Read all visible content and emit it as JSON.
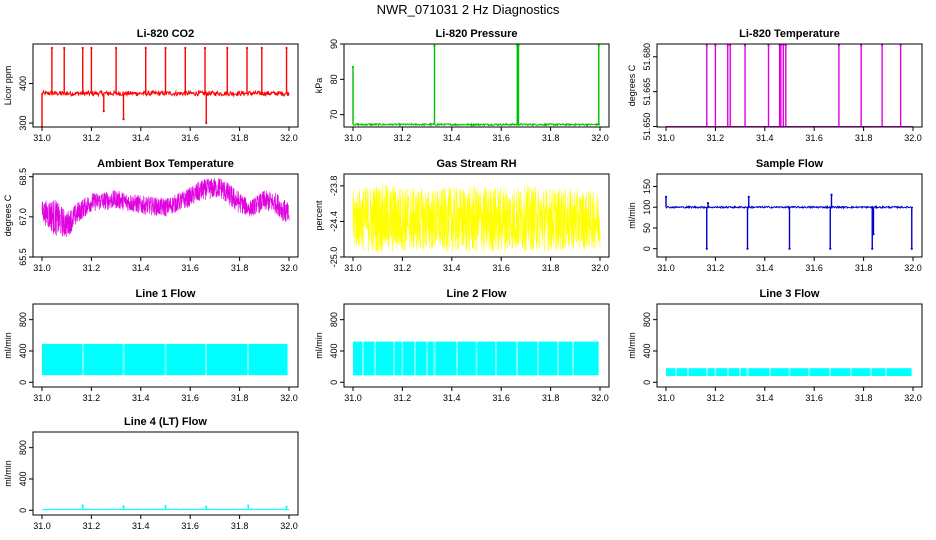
{
  "title": "NWR_071031 2 Hz Diagnostics",
  "chart_data": [
    {
      "type": "line",
      "title": "Li-820 CO2",
      "ylabel": "Licor ppm",
      "color": "#ff0000",
      "xlim": [
        31.0,
        32.0
      ],
      "ylim": [
        290,
        500
      ],
      "x_ticks": [
        "31.0",
        "31.2",
        "31.4",
        "31.6",
        "31.8",
        "32.0"
      ],
      "y_ticks": [
        {
          "value": 300,
          "label": "300"
        },
        {
          "value": 400,
          "label": "400"
        }
      ],
      "baseline": 375,
      "noise": 6,
      "fill": false,
      "spikes": [
        {
          "x": 31.0,
          "y": 290
        },
        {
          "x": 31.04,
          "y": 490
        },
        {
          "x": 31.09,
          "y": 490
        },
        {
          "x": 31.165,
          "y": 490
        },
        {
          "x": 31.2,
          "y": 490
        },
        {
          "x": 31.25,
          "y": 330
        },
        {
          "x": 31.3,
          "y": 490
        },
        {
          "x": 31.33,
          "y": 310
        },
        {
          "x": 31.42,
          "y": 490
        },
        {
          "x": 31.5,
          "y": 490
        },
        {
          "x": 31.58,
          "y": 490
        },
        {
          "x": 31.66,
          "y": 490
        },
        {
          "x": 31.665,
          "y": 300
        },
        {
          "x": 31.75,
          "y": 490
        },
        {
          "x": 31.83,
          "y": 490
        },
        {
          "x": 31.89,
          "y": 490
        },
        {
          "x": 31.99,
          "y": 490
        }
      ]
    },
    {
      "type": "line",
      "title": "Li-820 Pressure",
      "ylabel": "kPa",
      "color": "#00c000",
      "xlim": [
        31.0,
        32.0
      ],
      "ylim": [
        66.5,
        90
      ],
      "x_ticks": [
        "31.0",
        "31.2",
        "31.4",
        "31.6",
        "31.8",
        "32.0"
      ],
      "y_ticks": [
        {
          "value": 70,
          "label": "70"
        },
        {
          "value": 80,
          "label": "80"
        },
        {
          "value": 90,
          "label": "90"
        }
      ],
      "baseline": 67.2,
      "noise": 0.25,
      "fill": false,
      "spikes": [
        {
          "x": 31.0,
          "y": 83.5
        },
        {
          "x": 31.33,
          "y": 89.5
        },
        {
          "x": 31.665,
          "y": 89.8
        },
        {
          "x": 31.67,
          "y": 89.6
        },
        {
          "x": 31.995,
          "y": 89.6
        }
      ]
    },
    {
      "type": "line",
      "title": "Li-820 Temperature",
      "ylabel": "degrees C",
      "color": "#e000e0",
      "xlim": [
        31.0,
        32.0
      ],
      "ylim": [
        51.6498,
        51.6855
      ],
      "x_ticks": [
        "31.0",
        "31.2",
        "31.4",
        "31.6",
        "31.8",
        "32.0"
      ],
      "y_ticks": [
        {
          "value": 51.65,
          "label": "51.650"
        },
        {
          "value": 51.665,
          "label": "51.665"
        },
        {
          "value": 51.68,
          "label": "51.680"
        }
      ],
      "baseline": 51.65,
      "noise": 0,
      "fill": false,
      "spikes": [
        {
          "x": 31.165,
          "y": 51.685
        },
        {
          "x": 31.2,
          "y": 51.685
        },
        {
          "x": 31.25,
          "y": 51.685
        },
        {
          "x": 31.26,
          "y": 51.685
        },
        {
          "x": 31.32,
          "y": 51.685
        },
        {
          "x": 31.415,
          "y": 51.685
        },
        {
          "x": 31.46,
          "y": 51.685
        },
        {
          "x": 31.465,
          "y": 51.685
        },
        {
          "x": 31.475,
          "y": 51.685
        },
        {
          "x": 31.485,
          "y": 51.685
        },
        {
          "x": 31.7,
          "y": 51.685
        },
        {
          "x": 31.79,
          "y": 51.685
        },
        {
          "x": 31.875,
          "y": 51.685
        },
        {
          "x": 31.95,
          "y": 51.685
        }
      ]
    },
    {
      "type": "line",
      "title": "Ambient Box Temperature",
      "ylabel": "degrees C",
      "color": "#e000e0",
      "xlim": [
        31.0,
        32.0
      ],
      "ylim": [
        65.5,
        68.6
      ],
      "x_ticks": [
        "31.0",
        "31.2",
        "31.4",
        "31.6",
        "31.8",
        "32.0"
      ],
      "y_ticks": [
        {
          "value": 65.5,
          "label": "65.5"
        },
        {
          "value": 67.0,
          "label": "67.0"
        },
        {
          "value": 68.5,
          "label": "68.5"
        }
      ],
      "envelope": [
        {
          "x": 31.0,
          "lo": 66.8,
          "hi": 67.6
        },
        {
          "x": 31.05,
          "lo": 66.3,
          "hi": 67.7
        },
        {
          "x": 31.1,
          "lo": 66.2,
          "hi": 67.2
        },
        {
          "x": 31.15,
          "lo": 66.8,
          "hi": 67.6
        },
        {
          "x": 31.2,
          "lo": 67.2,
          "hi": 67.9
        },
        {
          "x": 31.3,
          "lo": 67.3,
          "hi": 68.0
        },
        {
          "x": 31.4,
          "lo": 67.1,
          "hi": 67.8
        },
        {
          "x": 31.5,
          "lo": 67.0,
          "hi": 67.7
        },
        {
          "x": 31.58,
          "lo": 67.3,
          "hi": 68.0
        },
        {
          "x": 31.65,
          "lo": 67.6,
          "hi": 68.4
        },
        {
          "x": 31.72,
          "lo": 67.7,
          "hi": 68.5
        },
        {
          "x": 31.78,
          "lo": 67.2,
          "hi": 68.1
        },
        {
          "x": 31.84,
          "lo": 67.0,
          "hi": 67.6
        },
        {
          "x": 31.9,
          "lo": 67.2,
          "hi": 68.0
        },
        {
          "x": 31.95,
          "lo": 67.1,
          "hi": 67.9
        },
        {
          "x": 32.0,
          "lo": 66.6,
          "hi": 67.5
        }
      ]
    },
    {
      "type": "line",
      "title": "Gas Stream RH",
      "ylabel": "percent",
      "color": "#ffff00",
      "xlim": [
        31.0,
        32.0
      ],
      "ylim": [
        -25.0,
        -23.6
      ],
      "x_ticks": [
        "31.0",
        "31.2",
        "31.4",
        "31.6",
        "31.8",
        "32.0"
      ],
      "y_ticks": [
        {
          "value": -25.0,
          "label": "-25.0"
        },
        {
          "value": -24.4,
          "label": "-24.4"
        },
        {
          "value": -23.8,
          "label": "-23.8"
        }
      ],
      "envelope": [
        {
          "x": 31.0,
          "lo": -24.85,
          "hi": -23.85
        },
        {
          "x": 31.1,
          "lo": -24.95,
          "hi": -23.75
        },
        {
          "x": 31.3,
          "lo": -24.9,
          "hi": -23.85
        },
        {
          "x": 31.5,
          "lo": -24.95,
          "hi": -23.8
        },
        {
          "x": 31.7,
          "lo": -24.9,
          "hi": -23.8
        },
        {
          "x": 31.9,
          "lo": -24.9,
          "hi": -23.85
        },
        {
          "x": 32.0,
          "lo": -24.85,
          "hi": -23.9
        }
      ]
    },
    {
      "type": "line",
      "title": "Sample Flow",
      "ylabel": "ml/min",
      "color": "#0000cc",
      "xlim": [
        31.0,
        32.0
      ],
      "ylim": [
        -20,
        180
      ],
      "x_ticks": [
        "31.0",
        "31.2",
        "31.4",
        "31.6",
        "31.8",
        "32.0"
      ],
      "y_ticks": [
        {
          "value": 0,
          "label": "0"
        },
        {
          "value": 50,
          "label": "50"
        },
        {
          "value": 100,
          "label": "100"
        },
        {
          "value": 150,
          "label": "150"
        }
      ],
      "baseline": 100,
      "noise": 2,
      "fill": false,
      "spikes": [
        {
          "x": 31.0,
          "y": 125
        },
        {
          "x": 31.165,
          "y": 0
        },
        {
          "x": 31.17,
          "y": 110
        },
        {
          "x": 31.33,
          "y": 0
        },
        {
          "x": 31.335,
          "y": 125
        },
        {
          "x": 31.5,
          "y": 0
        },
        {
          "x": 31.665,
          "y": 0
        },
        {
          "x": 31.67,
          "y": 130
        },
        {
          "x": 31.835,
          "y": 0
        },
        {
          "x": 31.84,
          "y": 35
        },
        {
          "x": 31.995,
          "y": 0
        }
      ]
    },
    {
      "type": "line",
      "title": "Line 1 Flow",
      "ylabel": "ml/min",
      "color": "#00ffff",
      "xlim": [
        31.0,
        32.0
      ],
      "ylim": [
        -60,
        1000
      ],
      "x_ticks": [
        "31.0",
        "31.2",
        "31.4",
        "31.6",
        "31.8",
        "32.0"
      ],
      "y_ticks": [
        {
          "value": 0,
          "label": "0"
        },
        {
          "value": 400,
          "label": "400"
        },
        {
          "value": 800,
          "label": "800"
        }
      ],
      "band": {
        "lo": 90,
        "hi": 490
      },
      "gaps": [
        31.165,
        31.33,
        31.5,
        31.665,
        31.835,
        31.995
      ]
    },
    {
      "type": "line",
      "title": "Line 2 Flow",
      "ylabel": "ml/min",
      "color": "#00ffff",
      "xlim": [
        31.0,
        32.0
      ],
      "ylim": [
        -60,
        1000
      ],
      "x_ticks": [
        "31.0",
        "31.2",
        "31.4",
        "31.6",
        "31.8",
        "32.0"
      ],
      "y_ticks": [
        {
          "value": 0,
          "label": "0"
        },
        {
          "value": 400,
          "label": "400"
        },
        {
          "value": 800,
          "label": "800"
        }
      ],
      "band": {
        "lo": 90,
        "hi": 520
      },
      "gaps": [
        31.04,
        31.09,
        31.165,
        31.2,
        31.25,
        31.3,
        31.33,
        31.42,
        31.5,
        31.58,
        31.665,
        31.75,
        31.83,
        31.89,
        31.995
      ]
    },
    {
      "type": "line",
      "title": "Line 3 Flow",
      "ylabel": "ml/min",
      "color": "#00ffff",
      "xlim": [
        31.0,
        32.0
      ],
      "ylim": [
        -60,
        1000
      ],
      "x_ticks": [
        "31.0",
        "31.2",
        "31.4",
        "31.6",
        "31.8",
        "32.0"
      ],
      "y_ticks": [
        {
          "value": 0,
          "label": "0"
        },
        {
          "value": 400,
          "label": "400"
        },
        {
          "value": 800,
          "label": "800"
        }
      ],
      "band": {
        "lo": 80,
        "hi": 180
      },
      "gaps": [
        31.04,
        31.09,
        31.165,
        31.2,
        31.25,
        31.3,
        31.33,
        31.42,
        31.5,
        31.58,
        31.665,
        31.75,
        31.83,
        31.89,
        31.995
      ]
    },
    {
      "type": "line",
      "title": "Line 4 (LT) Flow",
      "ylabel": "ml/min",
      "color": "#00ffff",
      "xlim": [
        31.0,
        32.0
      ],
      "ylim": [
        -60,
        1000
      ],
      "x_ticks": [
        "31.0",
        "31.2",
        "31.4",
        "31.6",
        "31.8",
        "32.0"
      ],
      "y_ticks": [
        {
          "value": 0,
          "label": "0"
        },
        {
          "value": 400,
          "label": "400"
        },
        {
          "value": 800,
          "label": "800"
        }
      ],
      "baseline": 10,
      "noise": 3,
      "fill": false,
      "spikes": [
        {
          "x": 31.165,
          "y": 60
        },
        {
          "x": 31.33,
          "y": 50
        },
        {
          "x": 31.5,
          "y": 55
        },
        {
          "x": 31.665,
          "y": 45
        },
        {
          "x": 31.835,
          "y": 60
        },
        {
          "x": 31.99,
          "y": 45
        }
      ]
    }
  ]
}
